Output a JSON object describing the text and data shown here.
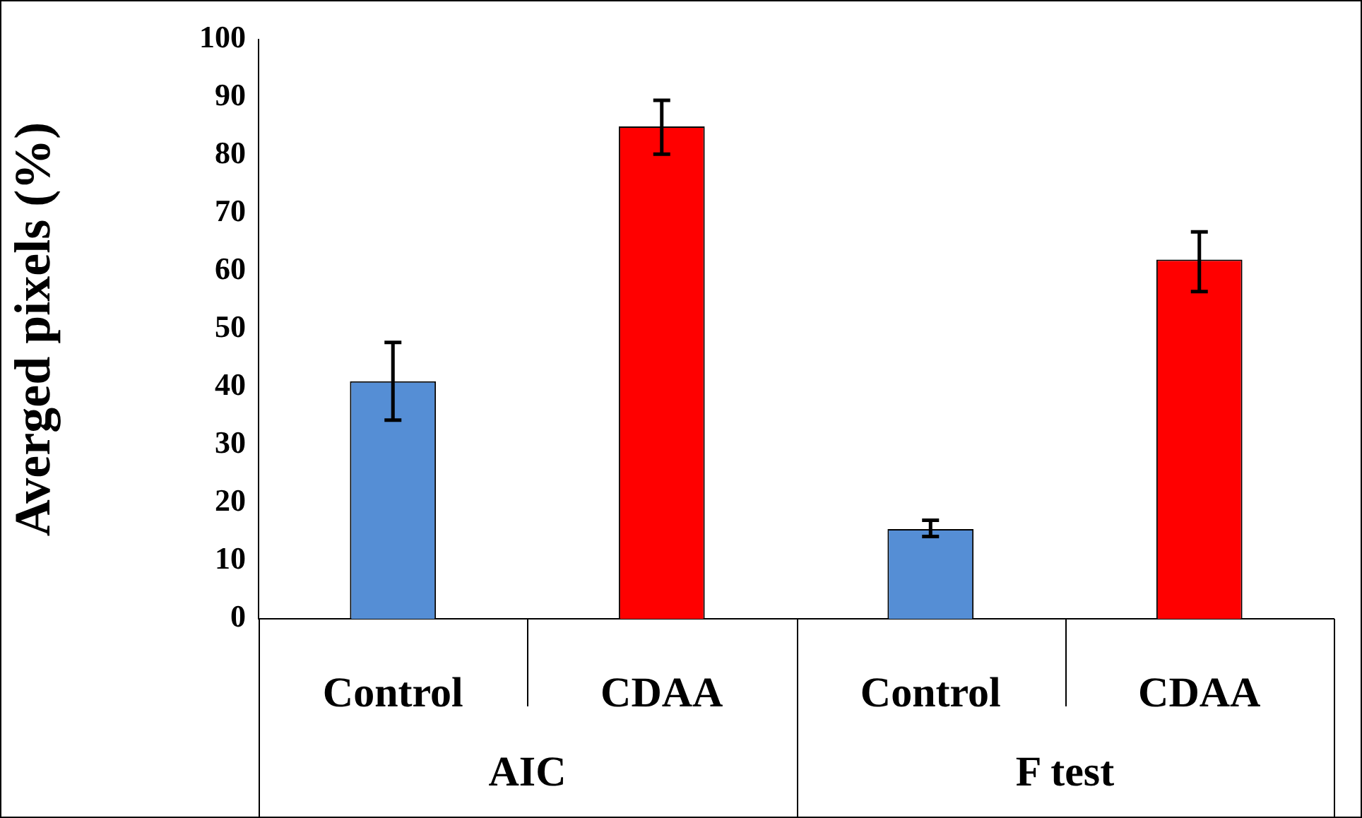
{
  "chart_data": {
    "type": "bar",
    "ylabel": "Averged pixels (%)",
    "categories": [
      "Control",
      "CDAA",
      "Control",
      "CDAA"
    ],
    "values": [
      41,
      85,
      15.5,
      62
    ],
    "colors": [
      "#558ed5",
      "#ff0000",
      "#558ed5",
      "#ff0000"
    ],
    "errors": [
      [
        34.3,
        47.7
      ],
      [
        80.2,
        89.5
      ],
      [
        14.2,
        17
      ],
      [
        56.5,
        66.8
      ]
    ],
    "ylim": [
      0,
      100
    ],
    "yticks": [
      0,
      10,
      20,
      30,
      40,
      50,
      60,
      70,
      80,
      90,
      100
    ],
    "grid": false,
    "legend": false,
    "annotations": [
      "AIC",
      "F test"
    ]
  }
}
